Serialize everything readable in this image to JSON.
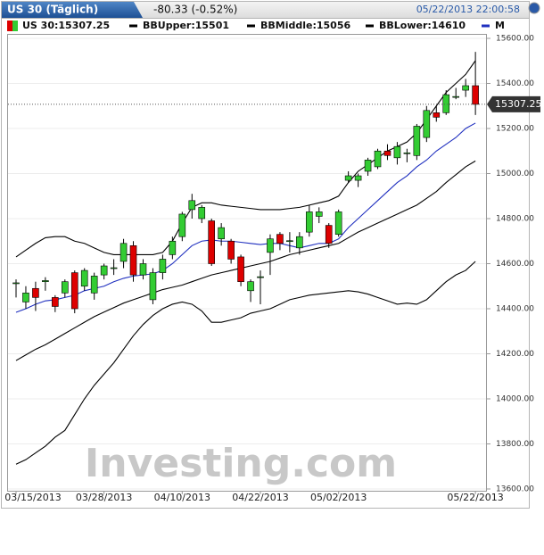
{
  "chart_data": {
    "type": "candlestick",
    "title": "US 30 (Täglich)",
    "change": "-80.33 (-0.52%)",
    "timestamp": "05/22/2013 22:00:58",
    "watermark": "Investing.com",
    "grid": true,
    "ylim": [
      13600,
      15600
    ],
    "yticks": [
      {
        "value": 15600,
        "label": "15600.00"
      },
      {
        "value": 15400,
        "label": "15400.00"
      },
      {
        "value": 15200,
        "label": "15200.00"
      },
      {
        "value": 15000,
        "label": "15000.00"
      },
      {
        "value": 14800,
        "label": "14800.00"
      },
      {
        "value": 14600,
        "label": "14600.00"
      },
      {
        "value": 14400,
        "label": "14400.00"
      },
      {
        "value": 14200,
        "label": "14200.00"
      },
      {
        "value": 14000,
        "label": "14000.00"
      },
      {
        "value": 13800,
        "label": "13800.00"
      },
      {
        "value": 13600,
        "label": "13600.00"
      }
    ],
    "last_price": 15307.25,
    "categories": [
      "03/15/2013",
      null,
      null,
      null,
      null,
      null,
      null,
      null,
      null,
      "03/28/2013",
      null,
      null,
      null,
      null,
      null,
      null,
      null,
      "04/10/2013",
      null,
      null,
      null,
      null,
      null,
      null,
      null,
      "04/22/2013",
      null,
      null,
      null,
      null,
      null,
      null,
      null,
      "05/02/2013",
      null,
      null,
      null,
      null,
      null,
      null,
      null,
      null,
      null,
      null,
      null,
      null,
      null,
      "05/22/2013"
    ],
    "candles": {
      "name": "US 30:15307.25",
      "up_color": "#33cc33",
      "down_color": "#dd0000",
      "open": [
        14514,
        14430,
        14490,
        14520,
        14450,
        14470,
        14560,
        14500,
        14470,
        14550,
        14580,
        14610,
        14680,
        14550,
        14440,
        14560,
        14640,
        14720,
        14840,
        14800,
        14790,
        14710,
        14700,
        14630,
        14480,
        14540,
        14650,
        14730,
        14700,
        14670,
        14740,
        14810,
        14770,
        14730,
        14970,
        14970,
        15010,
        15030,
        15100,
        15070,
        15090,
        15080,
        15160,
        15270,
        15270,
        15340,
        15370,
        15390
      ],
      "high": [
        14530,
        14500,
        14520,
        14540,
        14460,
        14530,
        14570,
        14580,
        14560,
        14600,
        14620,
        14710,
        14700,
        14620,
        14580,
        14640,
        14720,
        14830,
        14910,
        14860,
        14800,
        14780,
        14710,
        14640,
        14530,
        14570,
        14730,
        14740,
        14740,
        14740,
        14860,
        14850,
        14780,
        14840,
        15010,
        15000,
        15070,
        15110,
        15130,
        15140,
        15110,
        15220,
        15300,
        15300,
        15370,
        15380,
        15420,
        15540
      ],
      "low": [
        14450,
        14400,
        14390,
        14480,
        14385,
        14450,
        14380,
        14480,
        14440,
        14530,
        14550,
        14580,
        14520,
        14530,
        14420,
        14530,
        14620,
        14700,
        14800,
        14780,
        14590,
        14680,
        14600,
        14500,
        14430,
        14420,
        14550,
        14660,
        14650,
        14640,
        14720,
        14780,
        14670,
        14720,
        14960,
        14940,
        14990,
        15020,
        15060,
        15040,
        15050,
        15060,
        15140,
        15230,
        15260,
        15330,
        15340,
        15260
      ],
      "close": [
        14515,
        14470,
        14450,
        14525,
        14410,
        14520,
        14400,
        14570,
        14545,
        14590,
        14582,
        14690,
        14550,
        14600,
        14560,
        14620,
        14700,
        14820,
        14880,
        14850,
        14600,
        14760,
        14620,
        14520,
        14520,
        14542,
        14710,
        14690,
        14702,
        14720,
        14830,
        14830,
        14690,
        14830,
        14990,
        14990,
        15060,
        15100,
        15080,
        15120,
        15092,
        15210,
        15280,
        15250,
        15350,
        15342,
        15390,
        15307.25
      ]
    },
    "series": [
      {
        "name": "BBUpper:15501",
        "color": "#000000",
        "values": [
          14630,
          14660,
          14690,
          14715,
          14720,
          14720,
          14700,
          14690,
          14670,
          14650,
          14640,
          14640,
          14640,
          14640,
          14640,
          14650,
          14700,
          14780,
          14850,
          14870,
          14870,
          14860,
          14855,
          14850,
          14845,
          14840,
          14840,
          14840,
          14845,
          14850,
          14860,
          14870,
          14880,
          14900,
          14960,
          15010,
          15040,
          15070,
          15100,
          15120,
          15140,
          15180,
          15240,
          15300,
          15360,
          15400,
          15440,
          15501
        ]
      },
      {
        "name": "BBMiddle:15056",
        "color": "#000000",
        "values": [
          14170,
          14195,
          14220,
          14240,
          14265,
          14290,
          14315,
          14340,
          14365,
          14385,
          14405,
          14425,
          14440,
          14455,
          14470,
          14485,
          14495,
          14505,
          14520,
          14535,
          14550,
          14560,
          14570,
          14580,
          14590,
          14600,
          14610,
          14625,
          14640,
          14650,
          14660,
          14670,
          14680,
          14690,
          14715,
          14740,
          14760,
          14780,
          14800,
          14820,
          14840,
          14860,
          14890,
          14920,
          14960,
          14995,
          15030,
          15056
        ]
      },
      {
        "name": "BBLower:14610",
        "color": "#000000",
        "values": [
          13710,
          13730,
          13760,
          13790,
          13830,
          13860,
          13930,
          14000,
          14060,
          14110,
          14160,
          14220,
          14280,
          14330,
          14370,
          14400,
          14420,
          14430,
          14420,
          14390,
          14340,
          14340,
          14350,
          14360,
          14380,
          14390,
          14400,
          14420,
          14440,
          14450,
          14460,
          14465,
          14470,
          14475,
          14480,
          14475,
          14465,
          14450,
          14435,
          14420,
          14425,
          14420,
          14440,
          14480,
          14520,
          14550,
          14570,
          14610
        ]
      },
      {
        "name": "M",
        "color": "#1f2fbf",
        "values": [
          14384,
          14400,
          14420,
          14435,
          14440,
          14450,
          14460,
          14480,
          14490,
          14500,
          14520,
          14535,
          14545,
          14550,
          14555,
          14570,
          14600,
          14640,
          14680,
          14700,
          14705,
          14700,
          14700,
          14695,
          14690,
          14685,
          14690,
          14690,
          14680,
          14670,
          14680,
          14690,
          14690,
          14710,
          14760,
          14800,
          14840,
          14880,
          14920,
          14960,
          14990,
          15030,
          15060,
          15100,
          15130,
          15160,
          15200,
          15224
        ]
      }
    ]
  }
}
